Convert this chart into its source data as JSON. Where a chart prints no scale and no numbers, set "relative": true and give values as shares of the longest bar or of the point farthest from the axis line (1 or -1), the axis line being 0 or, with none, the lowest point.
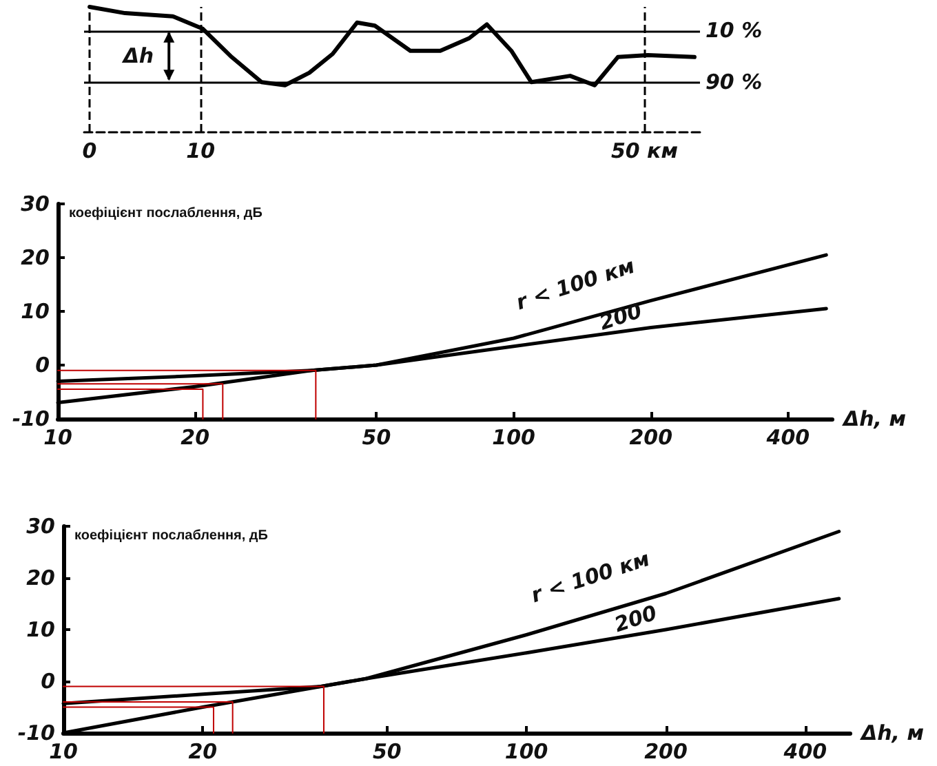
{
  "chart_data": [
    {
      "type": "line",
      "relative": true,
      "color": "#000000",
      "marker": "none",
      "legend": false,
      "grid": false,
      "xlim": [
        -0.5,
        55
      ],
      "xticks": [
        0,
        10,
        {
          "value": 50,
          "label": "50 км"
        }
      ],
      "x": [
        0,
        3.2,
        7.5,
        10.2,
        12.8,
        15.5,
        17.6,
        19.8,
        21.9,
        24.1,
        25.7,
        28.9,
        31.6,
        34.2,
        35.8,
        38,
        39.8,
        43.3,
        45.5,
        47.6,
        50.3,
        54.5
      ],
      "values": [
        1,
        0.95,
        0.925,
        0.825,
        0.6,
        0.4,
        0.375,
        0.475,
        0.625,
        0.875,
        0.85,
        0.65,
        0.65,
        0.75,
        0.86,
        0.65,
        0.4,
        0.45,
        0.375,
        0.6,
        0.615,
        0.6
      ],
      "ref_lines": [
        {
          "axis": "y",
          "value": 0.815
        },
        {
          "axis": "y",
          "value": 0.4
        },
        {
          "axis": "x",
          "value": 0,
          "line_style": "dashed"
        },
        {
          "axis": "x",
          "value": 10,
          "line_style": "dashed"
        },
        {
          "axis": "x",
          "value": 50,
          "line_style": "dashed"
        }
      ],
      "annotations": [
        "10 %",
        "90 %",
        "Δh"
      ]
    },
    {
      "type": "line",
      "ylabel": "коефіцієнт послаблення, дБ",
      "xlabel": "Δh, м",
      "log": "x",
      "xlim": [
        10,
        500
      ],
      "xticks": [
        10,
        20,
        50,
        100,
        200,
        400
      ],
      "ylim": [
        -10,
        30
      ],
      "yticks": [
        -10,
        0,
        10,
        20,
        30
      ],
      "marker": "none",
      "legend": false,
      "grid": false,
      "series": [
        {
          "name": "r < 100 км",
          "color": "#000000",
          "x": [
            10,
            20,
            36,
            50,
            100,
            200,
            485
          ],
          "values": [
            -7,
            -4,
            -1,
            0,
            5,
            12,
            20.5
          ]
        },
        {
          "name": "200",
          "color": "#000000",
          "x": [
            10,
            20,
            36,
            50,
            100,
            200,
            485
          ],
          "values": [
            -3,
            -2,
            -1,
            0,
            3.5,
            7,
            10.5
          ]
        },
        {
          "color": "#c00000",
          "x": [
            10,
            36.8,
            36.8
          ],
          "values": [
            -1,
            -1,
            -10
          ]
        },
        {
          "color": "#c00000",
          "x": [
            10,
            23,
            23
          ],
          "values": [
            -3.5,
            -3.5,
            -10
          ]
        },
        {
          "color": "#c00000",
          "x": [
            10,
            20.8,
            20.8
          ],
          "values": [
            -4.5,
            -4.5,
            -10
          ]
        }
      ]
    },
    {
      "type": "line",
      "ylabel": "коефіцієнт послаблення, дБ",
      "xlabel": "Δh, м",
      "log": "x",
      "xlim": [
        10,
        500
      ],
      "xticks": [
        10,
        20,
        50,
        100,
        200,
        400
      ],
      "ylim": [
        -10,
        30
      ],
      "yticks": [
        -10,
        0,
        10,
        20,
        30
      ],
      "marker": "none",
      "legend": false,
      "grid": false,
      "series": [
        {
          "name": "r < 100 км",
          "color": "#000000",
          "x": [
            10,
            20,
            36,
            45,
            100,
            200,
            473
          ],
          "values": [
            -10,
            -5,
            -1,
            0.5,
            9,
            17,
            29
          ]
        },
        {
          "name": "200",
          "color": "#000000",
          "x": [
            10,
            20,
            36,
            45,
            100,
            200,
            473
          ],
          "values": [
            -4.3,
            -2.5,
            -1,
            0.5,
            5.5,
            10,
            16
          ]
        },
        {
          "color": "#c00000",
          "x": [
            10,
            36.5,
            36.5
          ],
          "values": [
            -1,
            -1,
            -10
          ]
        },
        {
          "color": "#c00000",
          "x": [
            10,
            23.2,
            23.2
          ],
          "values": [
            -4,
            -4,
            -10
          ]
        },
        {
          "color": "#c00000",
          "x": [
            10,
            21.1,
            21.1
          ],
          "values": [
            -5,
            -5,
            -10
          ]
        }
      ]
    }
  ]
}
